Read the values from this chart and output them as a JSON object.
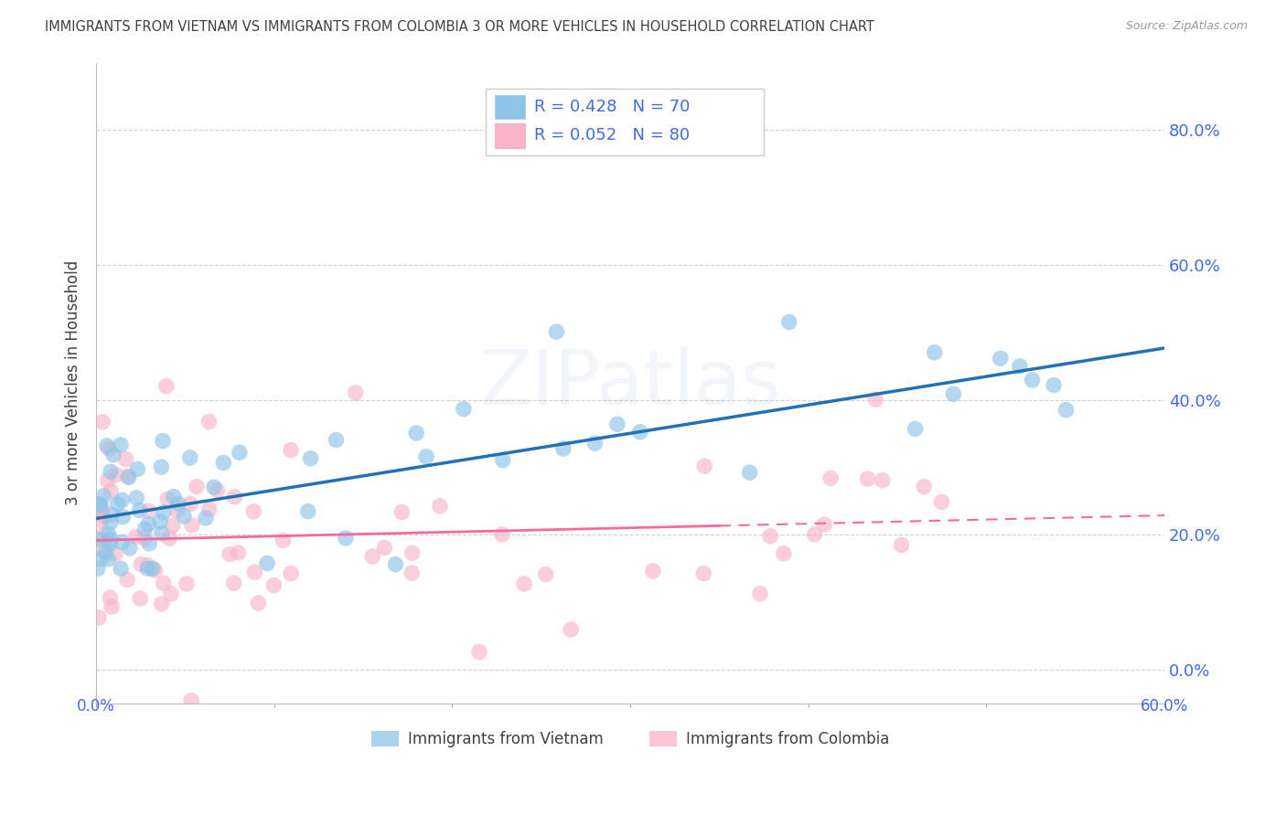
{
  "title": "IMMIGRANTS FROM VIETNAM VS IMMIGRANTS FROM COLOMBIA 3 OR MORE VEHICLES IN HOUSEHOLD CORRELATION CHART",
  "source": "Source: ZipAtlas.com",
  "ylabel": "3 or more Vehicles in Household",
  "xlim": [
    0.0,
    60.0
  ],
  "ylim": [
    -5.0,
    90.0
  ],
  "ytick_positions": [
    0,
    20,
    40,
    60,
    80
  ],
  "ytick_labels_right": [
    "0.0%",
    "20.0%",
    "40.0%",
    "60.0%",
    "80.0%"
  ],
  "xtick_positions": [
    0,
    10,
    20,
    30,
    40,
    50,
    60
  ],
  "color_vietnam": "#8ec4e8",
  "color_colombia": "#f9b4c8",
  "color_vietnam_line": "#2171b5",
  "color_colombia_line": "#f768a1",
  "color_title": "#404040",
  "color_source": "#999999",
  "color_right_axis": "#4169E1",
  "color_grid": "#d0d0d0",
  "background_color": "#ffffff",
  "legend_label1": "R = 0.428   N = 70",
  "legend_label2": "R = 0.052   N = 80",
  "bottom_label1": "Immigrants from Vietnam",
  "bottom_label2": "Immigrants from Colombia"
}
